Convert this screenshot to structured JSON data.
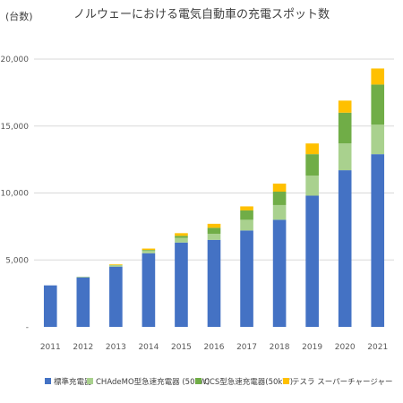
{
  "chart_data": {
    "type": "bar",
    "stacked": true,
    "title": "ノルウェーにおける電気自動車の充電スポット数",
    "ylabel": "(台数)",
    "xlabel": "",
    "categories": [
      "2011",
      "2012",
      "2013",
      "2014",
      "2015",
      "2016",
      "2017",
      "2018",
      "2019",
      "2020",
      "2021"
    ],
    "ylim": [
      0,
      20000
    ],
    "yticks": [
      0,
      5000,
      10000,
      15000,
      20000
    ],
    "ytick_labels": [
      "-",
      "5,000",
      "10,000",
      "15,000",
      "20,000"
    ],
    "grid": true,
    "legend_position": "bottom",
    "series": [
      {
        "name": "標準充電器",
        "color": "#4472C4",
        "values": [
          3100,
          3700,
          4500,
          5500,
          6300,
          6500,
          7200,
          8000,
          9800,
          11700,
          12900
        ]
      },
      {
        "name": "CHAdeMO型急速充電器 (50kW)",
        "color": "#A9D18E",
        "values": [
          0,
          50,
          120,
          200,
          350,
          450,
          800,
          1100,
          1500,
          2000,
          2200
        ]
      },
      {
        "name": "CCS型急速充電器(50kW)",
        "color": "#70AD47",
        "values": [
          0,
          0,
          0,
          50,
          150,
          450,
          700,
          1000,
          1600,
          2300,
          3000
        ]
      },
      {
        "name": "テスラ スーパーチャージャー",
        "color": "#FFC000",
        "values": [
          0,
          0,
          50,
          100,
          200,
          300,
          300,
          600,
          800,
          900,
          1200
        ]
      }
    ]
  }
}
